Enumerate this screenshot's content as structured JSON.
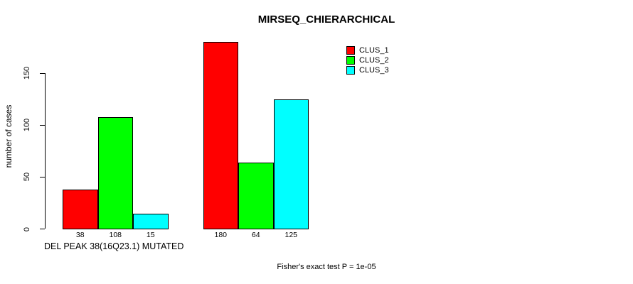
{
  "chart_data": {
    "type": "bar",
    "title": "MIRSEQ_CHIERARCHICAL",
    "ylabel": "number of cases",
    "xlabel": "DEL PEAK 38(16Q23.1) MUTATED",
    "annotation": "Fisher's exact test P = 1e-05",
    "categories": [
      "",
      ""
    ],
    "series": [
      {
        "name": "CLUS_1",
        "color": "#ff0000",
        "values": [
          38,
          180
        ]
      },
      {
        "name": "CLUS_2",
        "color": "#00ff00",
        "values": [
          108,
          64
        ]
      },
      {
        "name": "CLUS_3",
        "color": "#00ffff",
        "values": [
          15,
          125
        ]
      }
    ],
    "bar_value_labels": [
      [
        "38",
        "108",
        "15"
      ],
      [
        "180",
        "64",
        "125"
      ]
    ],
    "yticks": [
      0,
      50,
      100,
      150
    ],
    "ylim": [
      0,
      185
    ],
    "grid": false,
    "legend_position": "top-right",
    "bar_border_color": "#000000",
    "background_color": "#ffffff",
    "text_color": "#000000"
  }
}
